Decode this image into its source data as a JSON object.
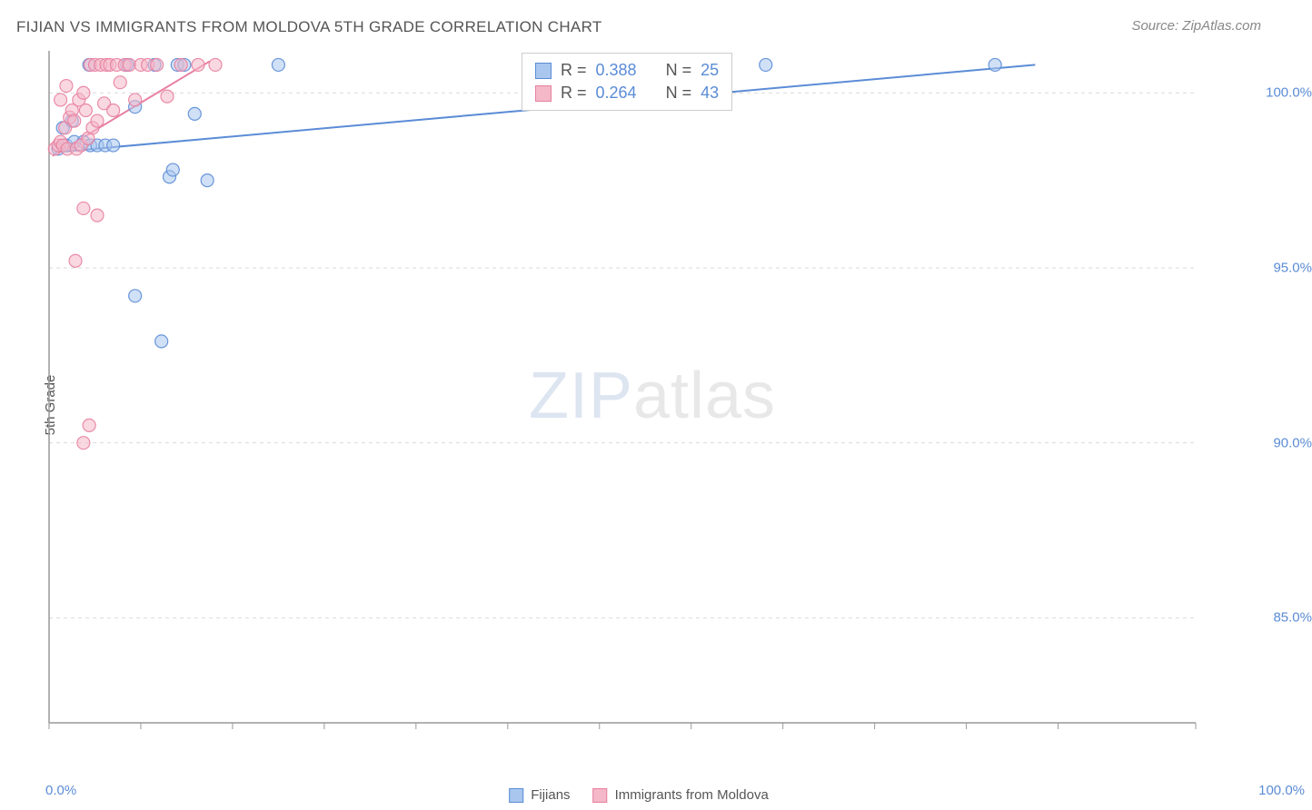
{
  "title": "FIJIAN VS IMMIGRANTS FROM MOLDOVA 5TH GRADE CORRELATION CHART",
  "source": "Source: ZipAtlas.com",
  "ylabel": "5th Grade",
  "watermark_zip": "ZIP",
  "watermark_atlas": "atlas",
  "xaxis": {
    "min_label": "0.0%",
    "max_label": "100.0%",
    "min": 0,
    "max": 100,
    "tick_positions": [
      0,
      8,
      16,
      24,
      32,
      40,
      48,
      56,
      64,
      72,
      80,
      88,
      100
    ]
  },
  "yaxis": {
    "ticks": [
      {
        "value": 100.0,
        "label": "100.0%"
      },
      {
        "value": 95.0,
        "label": "95.0%"
      },
      {
        "value": 90.0,
        "label": "90.0%"
      },
      {
        "value": 85.0,
        "label": "85.0%"
      }
    ],
    "min": 82.0,
    "max": 101.2
  },
  "series": [
    {
      "key": "fijians",
      "label": "Fijians",
      "color_fill": "#a9c6ee",
      "color_stroke": "#5b8cd6",
      "R": "0.388",
      "N": "25",
      "trend": {
        "x1": 0.5,
        "y1": 98.3,
        "x2": 86,
        "y2": 100.8
      },
      "points": [
        {
          "x": 0.8,
          "y": 98.4
        },
        {
          "x": 1.5,
          "y": 98.5
        },
        {
          "x": 2.2,
          "y": 98.6
        },
        {
          "x": 3.0,
          "y": 98.6
        },
        {
          "x": 3.6,
          "y": 98.5
        },
        {
          "x": 4.2,
          "y": 98.5
        },
        {
          "x": 4.9,
          "y": 98.5
        },
        {
          "x": 5.6,
          "y": 98.5
        },
        {
          "x": 6.8,
          "y": 100.8
        },
        {
          "x": 7.5,
          "y": 99.6
        },
        {
          "x": 9.2,
          "y": 100.8
        },
        {
          "x": 10.5,
          "y": 97.6
        },
        {
          "x": 10.8,
          "y": 97.8
        },
        {
          "x": 11.2,
          "y": 100.8
        },
        {
          "x": 11.8,
          "y": 100.8
        },
        {
          "x": 12.7,
          "y": 99.4
        },
        {
          "x": 13.8,
          "y": 97.5
        },
        {
          "x": 20.0,
          "y": 100.8
        },
        {
          "x": 7.5,
          "y": 94.2
        },
        {
          "x": 9.8,
          "y": 92.9
        },
        {
          "x": 62.5,
          "y": 100.8
        },
        {
          "x": 82.5,
          "y": 100.8
        },
        {
          "x": 1.2,
          "y": 99.0
        },
        {
          "x": 2.0,
          "y": 99.2
        },
        {
          "x": 3.5,
          "y": 100.8
        }
      ]
    },
    {
      "key": "moldova",
      "label": "Immigrants from Moldova",
      "color_fill": "#f4b8c8",
      "color_stroke": "#e87fa0",
      "R": "0.264",
      "N": "43",
      "trend": {
        "x1": 0.3,
        "y1": 98.2,
        "x2": 14,
        "y2": 100.9
      },
      "points": [
        {
          "x": 0.5,
          "y": 98.4
        },
        {
          "x": 0.8,
          "y": 98.5
        },
        {
          "x": 1.0,
          "y": 98.6
        },
        {
          "x": 1.2,
          "y": 98.5
        },
        {
          "x": 1.4,
          "y": 99.0
        },
        {
          "x": 1.6,
          "y": 98.4
        },
        {
          "x": 1.8,
          "y": 99.3
        },
        {
          "x": 2.0,
          "y": 99.5
        },
        {
          "x": 2.2,
          "y": 99.2
        },
        {
          "x": 2.4,
          "y": 98.4
        },
        {
          "x": 2.6,
          "y": 99.8
        },
        {
          "x": 2.8,
          "y": 98.5
        },
        {
          "x": 3.0,
          "y": 100.0
        },
        {
          "x": 3.2,
          "y": 99.5
        },
        {
          "x": 3.4,
          "y": 98.7
        },
        {
          "x": 3.6,
          "y": 100.8
        },
        {
          "x": 3.8,
          "y": 99.0
        },
        {
          "x": 4.0,
          "y": 100.8
        },
        {
          "x": 4.2,
          "y": 99.2
        },
        {
          "x": 4.5,
          "y": 100.8
        },
        {
          "x": 4.8,
          "y": 99.7
        },
        {
          "x": 5.0,
          "y": 100.8
        },
        {
          "x": 5.3,
          "y": 100.8
        },
        {
          "x": 5.6,
          "y": 99.5
        },
        {
          "x": 5.9,
          "y": 100.8
        },
        {
          "x": 6.2,
          "y": 100.3
        },
        {
          "x": 6.6,
          "y": 100.8
        },
        {
          "x": 7.0,
          "y": 100.8
        },
        {
          "x": 7.5,
          "y": 99.8
        },
        {
          "x": 8.0,
          "y": 100.8
        },
        {
          "x": 8.6,
          "y": 100.8
        },
        {
          "x": 9.4,
          "y": 100.8
        },
        {
          "x": 10.3,
          "y": 99.9
        },
        {
          "x": 11.5,
          "y": 100.8
        },
        {
          "x": 13.0,
          "y": 100.8
        },
        {
          "x": 14.5,
          "y": 100.8
        },
        {
          "x": 3.0,
          "y": 96.7
        },
        {
          "x": 4.2,
          "y": 96.5
        },
        {
          "x": 2.3,
          "y": 95.2
        },
        {
          "x": 3.5,
          "y": 90.5
        },
        {
          "x": 3.0,
          "y": 90.0
        },
        {
          "x": 1.0,
          "y": 99.8
        },
        {
          "x": 1.5,
          "y": 100.2
        }
      ]
    }
  ],
  "style": {
    "bg": "#ffffff",
    "grid_color": "#d9d9d9",
    "axis_color": "#999999",
    "marker_radius": 7,
    "marker_opacity": 0.55,
    "line_width": 2,
    "title_color": "#555555",
    "tick_color": "#5b8cd6"
  }
}
